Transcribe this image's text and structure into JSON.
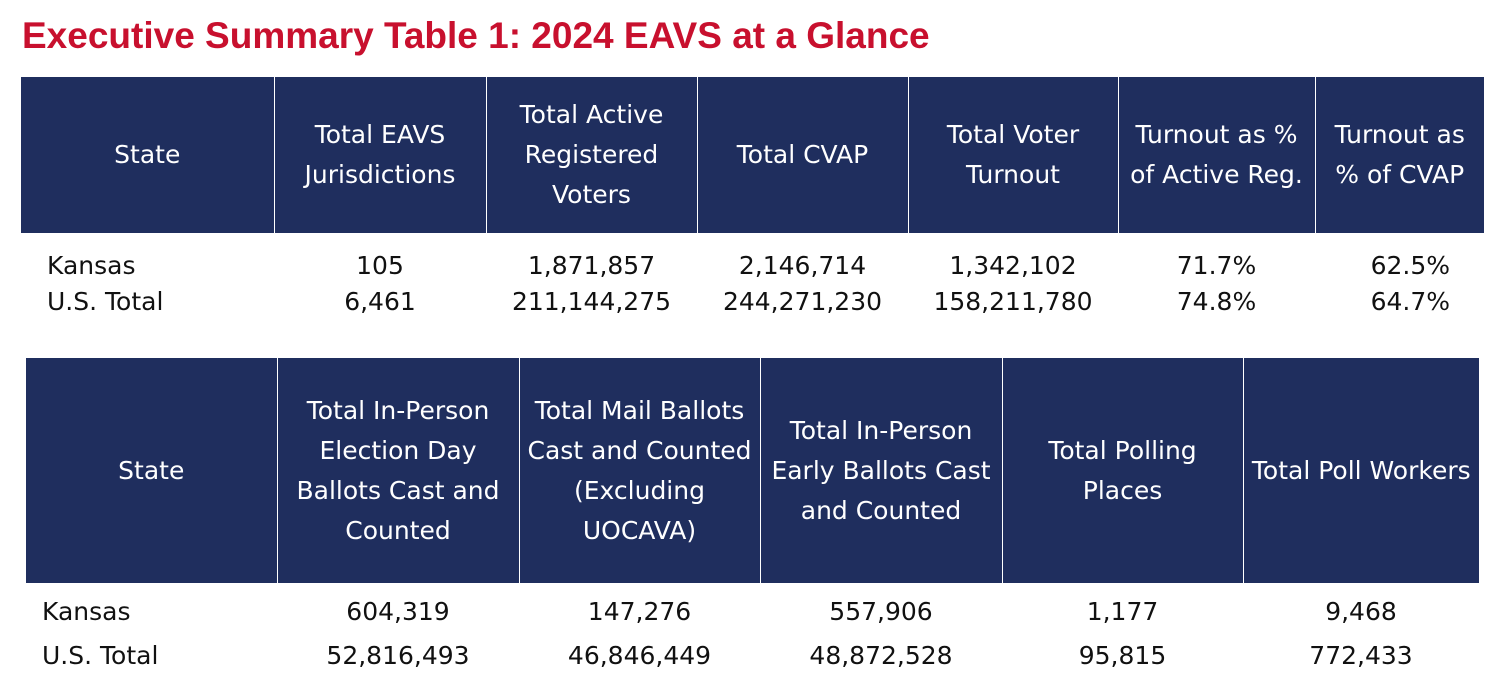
{
  "title": "Executive Summary Table 1: 2024 EAVS at a Glance",
  "table1": {
    "headers": [
      "State",
      "Total EAVS Jurisdictions",
      "Total Active Registered Voters",
      "Total CVAP",
      "Total Voter Turnout",
      "Turnout as % of Active Reg.",
      "Turnout as % of CVAP"
    ],
    "rows": [
      [
        "Kansas",
        "105",
        "1,871,857",
        "2,146,714",
        "1,342,102",
        "71.7%",
        "62.5%"
      ],
      [
        "U.S. Total",
        "6,461",
        "211,144,275",
        "244,271,230",
        "158,211,780",
        "74.8%",
        "64.7%"
      ]
    ]
  },
  "table2": {
    "headers": [
      "State",
      "Total In-Person Election Day Ballots Cast and Counted",
      "Total Mail Ballots Cast and Counted (Excluding UOCAVA)",
      "Total In-Person Early Ballots Cast and Counted",
      "Total Polling Places",
      "Total Poll Workers"
    ],
    "rows": [
      [
        "Kansas",
        "604,319",
        "147,276",
        "557,906",
        "1,177",
        "9,468"
      ],
      [
        "U.S. Total",
        "52,816,493",
        "46,846,449",
        "48,872,528",
        "95,815",
        "772,433"
      ]
    ]
  },
  "colors": {
    "title": "#c8102e",
    "header_bg": "#1f2e5e",
    "header_text": "#ffffff"
  }
}
